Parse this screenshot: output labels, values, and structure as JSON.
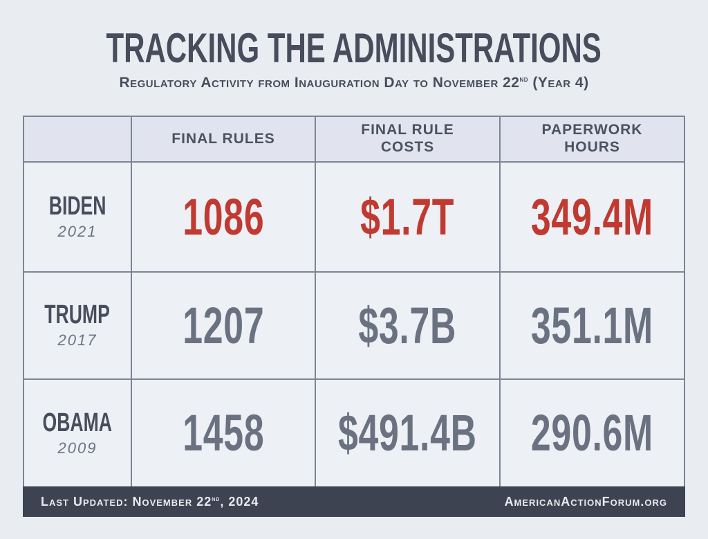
{
  "header": {
    "title": "TRACKING THE ADMINISTRATIONS",
    "subtitle_prefix": "Regulatory Activity from Inauguration Day to November 22",
    "subtitle_sup": "nd",
    "subtitle_suffix": " (Year 4)"
  },
  "table": {
    "headers": [
      "FINAL RULES",
      "FINAL RULE\nCOSTS",
      "PAPERWORK\nHOURS"
    ],
    "rows": [
      {
        "name": "BIDEN",
        "year": "2021",
        "final_rules": "1086",
        "final_rule_costs": "$1.7T",
        "paperwork_hours": "349.4M"
      },
      {
        "name": "TRUMP",
        "year": "2017",
        "final_rules": "1207",
        "final_rule_costs": "$3.7B",
        "paperwork_hours": "351.1M"
      },
      {
        "name": "OBAMA",
        "year": "2009",
        "final_rules": "1458",
        "final_rule_costs": "$491.4B",
        "paperwork_hours": "290.6M"
      }
    ]
  },
  "footer": {
    "updated_prefix": "Last Updated: November 22",
    "updated_sup": "nd",
    "updated_suffix": ", 2024",
    "site": "AmericanActionForum.org"
  },
  "colors": {
    "highlight_red": "#c03a31",
    "muted_slate": "#6a7282",
    "header_bg": "#e1e4ee",
    "cell_bg": "#edf0f4",
    "border": "#7e8496",
    "footer_bg": "#3d4351",
    "page_bg": "#e9edf1",
    "title_color": "#474d5c"
  },
  "chart_data": {
    "type": "table",
    "title": "TRACKING THE ADMINISTRATIONS",
    "subtitle": "Regulatory Activity from Inauguration Day to November 22nd (Year 4)",
    "columns": [
      "Final Rules",
      "Final Rule Costs",
      "Paperwork Hours"
    ],
    "rows": [
      {
        "administration": "Biden",
        "start_year": 2021,
        "final_rules": 1086,
        "final_rule_costs": "$1.7T",
        "paperwork_hours": "349.4M",
        "highlighted": true
      },
      {
        "administration": "Trump",
        "start_year": 2017,
        "final_rules": 1207,
        "final_rule_costs": "$3.7B",
        "paperwork_hours": "351.1M",
        "highlighted": false
      },
      {
        "administration": "Obama",
        "start_year": 2009,
        "final_rules": 1458,
        "final_rule_costs": "$491.4B",
        "paperwork_hours": "290.6M",
        "highlighted": false
      }
    ],
    "footer": {
      "last_updated": "November 22nd, 2024",
      "source": "AmericanActionForum.org"
    }
  }
}
